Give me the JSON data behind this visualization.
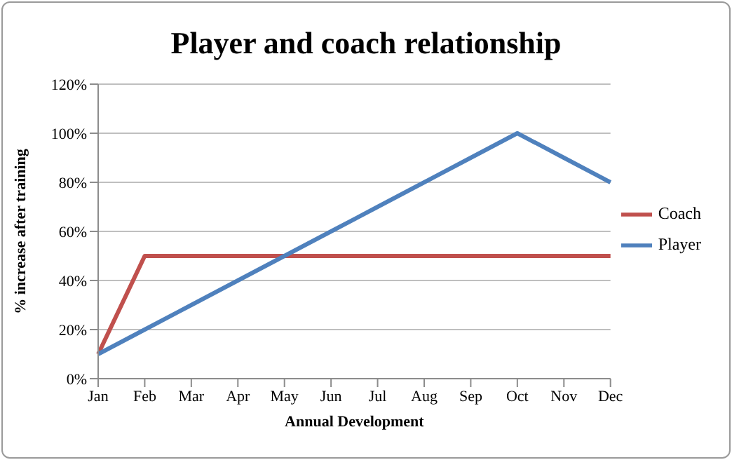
{
  "chart_data": {
    "type": "line",
    "title": "Player and coach relationship",
    "xlabel": "Annual Development",
    "ylabel": "% increase after training",
    "categories": [
      "Jan",
      "Feb",
      "Mar",
      "Apr",
      "May",
      "Jun",
      "Jul",
      "Aug",
      "Sep",
      "Oct",
      "Nov",
      "Dec"
    ],
    "series": [
      {
        "name": "Coach",
        "color": "#c0504d",
        "values": [
          10,
          50,
          50,
          50,
          50,
          50,
          50,
          50,
          50,
          50,
          50,
          50
        ]
      },
      {
        "name": "Player",
        "color": "#4f81bd",
        "values": [
          10,
          20,
          30,
          40,
          50,
          60,
          70,
          80,
          90,
          100,
          90,
          80
        ]
      }
    ],
    "ylim": [
      0,
      120
    ],
    "yticks": [
      {
        "value": 0,
        "label": "0%"
      },
      {
        "value": 20,
        "label": "20%"
      },
      {
        "value": 40,
        "label": "40%"
      },
      {
        "value": 60,
        "label": "60%"
      },
      {
        "value": 80,
        "label": "80%"
      },
      {
        "value": 100,
        "label": "100%"
      },
      {
        "value": 120,
        "label": "120%"
      }
    ],
    "grid": "y",
    "legend": "right",
    "marker": "none",
    "line_style": "solid"
  }
}
